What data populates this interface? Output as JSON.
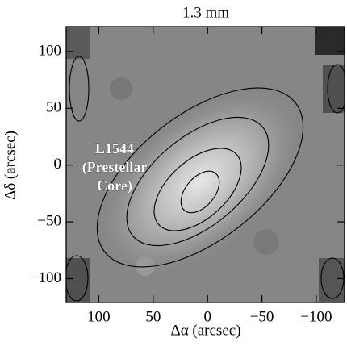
{
  "chart_data": {
    "type": "image",
    "title": "1.3 mm",
    "xlabel": "Δα (arcsec)",
    "ylabel": "Δδ (arcsec)",
    "annotation": [
      "L1544",
      "(Prestellar",
      "Core)"
    ],
    "xlim": [
      130,
      -126
    ],
    "ylim": [
      -121,
      122
    ],
    "xticks": [
      100,
      50,
      0,
      {
        "value": -50,
        "label": "−50"
      },
      {
        "value": -100,
        "label": "−100"
      }
    ],
    "yticks": [
      {
        "value": -100,
        "label": "−100"
      },
      {
        "value": -50,
        "label": "−50"
      },
      0,
      50,
      100
    ]
  }
}
